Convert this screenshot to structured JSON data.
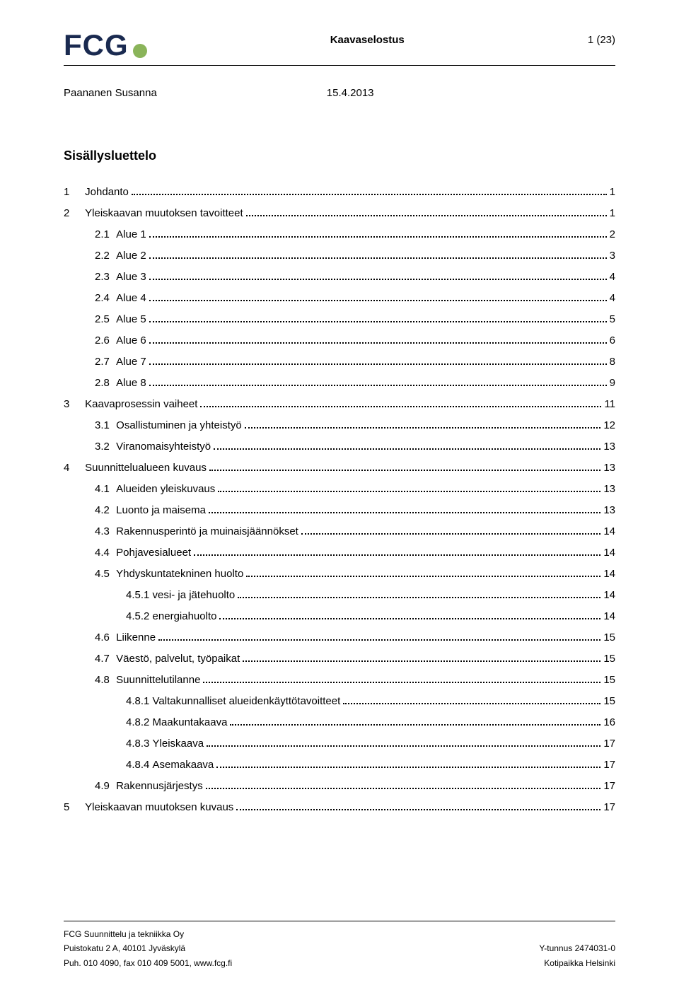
{
  "colors": {
    "logo_text": "#1a2a50",
    "logo_dot": "#8ab45a",
    "text": "#000000",
    "background": "#ffffff"
  },
  "header": {
    "logo_text": "FCG",
    "center": "Kaavaselostus",
    "right": "1 (23)"
  },
  "meta": {
    "author": "Paananen Susanna",
    "date": "15.4.2013"
  },
  "toc": {
    "title": "Sisällysluettelo",
    "entries": [
      {
        "indent": 0,
        "num": "1",
        "label": "Johdanto",
        "page": "1"
      },
      {
        "indent": 0,
        "num": "2",
        "label": "Yleiskaavan muutoksen tavoitteet",
        "page": "1"
      },
      {
        "indent": 1,
        "num": "2.1",
        "label": "Alue 1",
        "page": "2"
      },
      {
        "indent": 1,
        "num": "2.2",
        "label": "Alue 2",
        "page": "3"
      },
      {
        "indent": 1,
        "num": "2.3",
        "label": "Alue 3",
        "page": "4"
      },
      {
        "indent": 1,
        "num": "2.4",
        "label": "Alue 4",
        "page": "4"
      },
      {
        "indent": 1,
        "num": "2.5",
        "label": "Alue 5",
        "page": "5"
      },
      {
        "indent": 1,
        "num": "2.6",
        "label": "Alue 6",
        "page": "6"
      },
      {
        "indent": 1,
        "num": "2.7",
        "label": "Alue 7",
        "page": "8"
      },
      {
        "indent": 1,
        "num": "2.8",
        "label": "Alue 8",
        "page": "9"
      },
      {
        "indent": 0,
        "num": "3",
        "label": "Kaavaprosessin vaiheet",
        "page": "11"
      },
      {
        "indent": 1,
        "num": "3.1",
        "label": "Osallistuminen ja yhteistyö",
        "page": "12"
      },
      {
        "indent": 1,
        "num": "3.2",
        "label": "Viranomaisyhteistyö",
        "page": "13"
      },
      {
        "indent": 0,
        "num": "4",
        "label": "Suunnittelualueen kuvaus",
        "page": "13"
      },
      {
        "indent": 1,
        "num": "4.1",
        "label": "Alueiden yleiskuvaus",
        "page": "13"
      },
      {
        "indent": 1,
        "num": "4.2",
        "label": "Luonto ja maisema",
        "page": "13"
      },
      {
        "indent": 1,
        "num": "4.3",
        "label": "Rakennusperintö ja muinaisjäännökset",
        "page": "14"
      },
      {
        "indent": 1,
        "num": "4.4",
        "label": "Pohjavesialueet",
        "page": "14"
      },
      {
        "indent": 1,
        "num": "4.5",
        "label": "Yhdyskuntatekninen huolto",
        "page": "14"
      },
      {
        "indent": 2,
        "num": "4.5.1",
        "label": "vesi- ja jätehuolto",
        "page": "14"
      },
      {
        "indent": 2,
        "num": "4.5.2",
        "label": "energiahuolto",
        "page": "14"
      },
      {
        "indent": 1,
        "num": "4.6",
        "label": "Liikenne",
        "page": "15"
      },
      {
        "indent": 1,
        "num": "4.7",
        "label": "Väestö, palvelut, työpaikat",
        "page": "15"
      },
      {
        "indent": 1,
        "num": "4.8",
        "label": "Suunnittelutilanne",
        "page": "15"
      },
      {
        "indent": 2,
        "num": "4.8.1",
        "label": "Valtakunnalliset alueidenkäyttötavoitteet",
        "page": "15"
      },
      {
        "indent": 2,
        "num": "4.8.2",
        "label": "Maakuntakaava",
        "page": "16"
      },
      {
        "indent": 2,
        "num": "4.8.3",
        "label": "Yleiskaava",
        "page": "17"
      },
      {
        "indent": 2,
        "num": "4.8.4",
        "label": "Asemakaava",
        "page": "17"
      },
      {
        "indent": 1,
        "num": "4.9",
        "label": "Rakennusjärjestys",
        "page": "17"
      },
      {
        "indent": 0,
        "num": "5",
        "label": "Yleiskaavan muutoksen kuvaus",
        "page": "17"
      }
    ]
  },
  "footer": {
    "company": "FCG Suunnittelu ja tekniikka Oy",
    "address": "Puistokatu 2 A, 40101 Jyväskylä",
    "contact": "Puh. 010 4090, fax 010 409 5001, www.fcg.fi",
    "ytunnus": "Y-tunnus 2474031-0",
    "kotipaikka": "Kotipaikka Helsinki"
  }
}
